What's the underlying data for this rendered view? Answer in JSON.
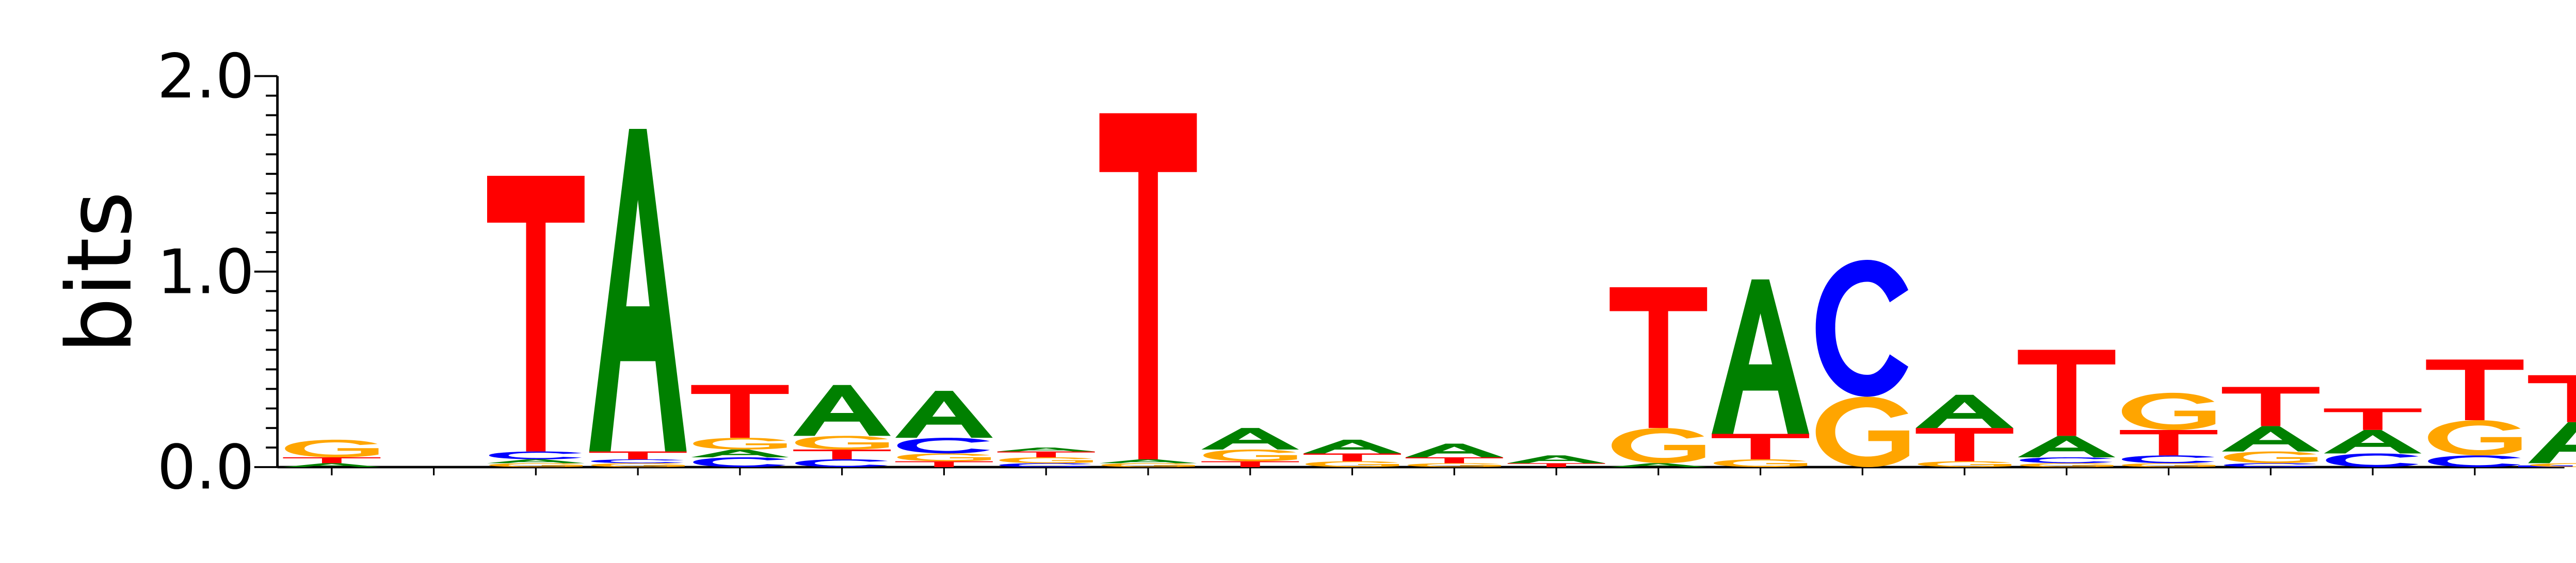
{
  "chart_data": {
    "type": "sequence-logo",
    "ylabel": "bits",
    "ylim": [
      0,
      2
    ],
    "y_ticks": [
      "0.0",
      "1.0",
      "2.0"
    ],
    "y_minor_step": 0.1,
    "colors": {
      "A": "#008000",
      "C": "#0000ff",
      "G": "#ffa500",
      "T": "#ff0000"
    },
    "positions": [
      [
        [
          "A",
          0.02
        ],
        [
          "T",
          0.03
        ],
        [
          "G",
          0.09
        ]
      ],
      [],
      [
        [
          "G",
          0.02
        ],
        [
          "A",
          0.02
        ],
        [
          "C",
          0.04
        ],
        [
          "T",
          1.41
        ]
      ],
      [
        [
          "G",
          0.02
        ],
        [
          "C",
          0.02
        ],
        [
          "T",
          0.04
        ],
        [
          "A",
          1.65
        ]
      ],
      [
        [
          "C",
          0.05
        ],
        [
          "A",
          0.04
        ],
        [
          "G",
          0.06
        ],
        [
          "T",
          0.27
        ]
      ],
      [
        [
          "C",
          0.04
        ],
        [
          "T",
          0.05
        ],
        [
          "G",
          0.07
        ],
        [
          "A",
          0.26
        ]
      ],
      [
        [
          "T",
          0.03
        ],
        [
          "G",
          0.04
        ],
        [
          "C",
          0.08
        ],
        [
          "A",
          0.24
        ]
      ],
      [
        [
          "C",
          0.02
        ],
        [
          "G",
          0.03
        ],
        [
          "T",
          0.03
        ],
        [
          "A",
          0.02
        ]
      ],
      [
        [
          "G",
          0.02
        ],
        [
          "A",
          0.02
        ],
        [
          "T",
          1.77
        ]
      ],
      [
        [
          "T",
          0.03
        ],
        [
          "G",
          0.06
        ],
        [
          "A",
          0.11
        ]
      ],
      [
        [
          "G",
          0.03
        ],
        [
          "T",
          0.04
        ],
        [
          "A",
          0.07
        ]
      ],
      [
        [
          "G",
          0.02
        ],
        [
          "T",
          0.03
        ],
        [
          "A",
          0.07
        ]
      ],
      [
        [
          "T",
          0.02
        ],
        [
          "A",
          0.04
        ]
      ],
      [
        [
          "A",
          0.02
        ],
        [
          "G",
          0.18
        ],
        [
          "T",
          0.72
        ]
      ],
      [
        [
          "G",
          0.04
        ],
        [
          "T",
          0.13
        ],
        [
          "A",
          0.79
        ]
      ],
      [
        [
          "G",
          0.36
        ],
        [
          "C",
          0.7
        ]
      ],
      [
        [
          "G",
          0.03
        ],
        [
          "T",
          0.17
        ],
        [
          "A",
          0.17
        ]
      ],
      [
        [
          "G",
          0.02
        ],
        [
          "C",
          0.03
        ],
        [
          "A",
          0.11
        ],
        [
          "T",
          0.44
        ]
      ],
      [
        [
          "G",
          0.02
        ],
        [
          "C",
          0.04
        ],
        [
          "T",
          0.13
        ],
        [
          "G",
          0.19
        ]
      ],
      [
        [
          "C",
          0.02
        ],
        [
          "G",
          0.06
        ],
        [
          "A",
          0.13
        ],
        [
          "T",
          0.2
        ]
      ],
      [
        [
          "C",
          0.07
        ],
        [
          "A",
          0.12
        ],
        [
          "T",
          0.11
        ]
      ],
      [
        [
          "C",
          0.06
        ],
        [
          "G",
          0.18
        ],
        [
          "T",
          0.31
        ]
      ],
      [
        [
          "G",
          0.02
        ],
        [
          "A",
          0.21
        ],
        [
          "T",
          0.24
        ]
      ]
    ]
  }
}
